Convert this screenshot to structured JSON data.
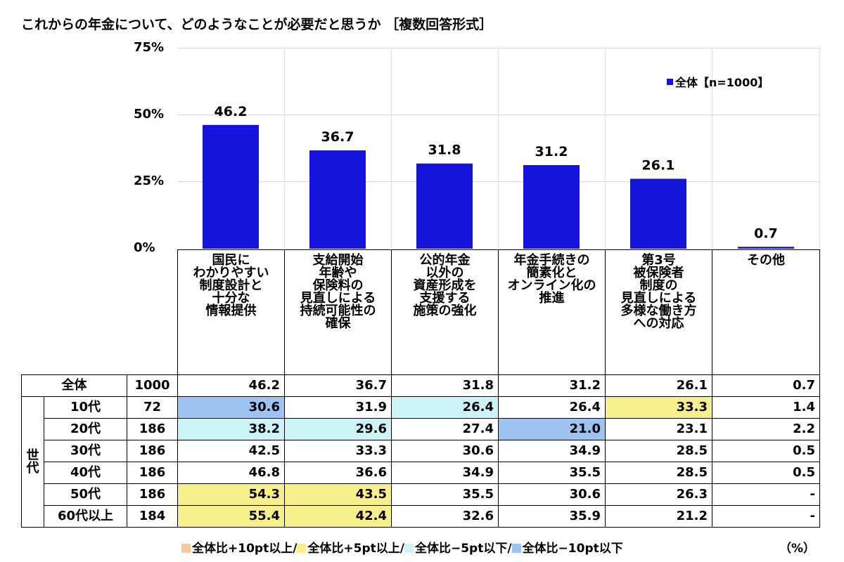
{
  "title": "これからの年金について、どのようなことが必要だと思うか ［複数回答形式］",
  "legend": {
    "label": "全体【n=1000】",
    "color": "#1414dc"
  },
  "chart_data": {
    "type": "bar",
    "title": "これからの年金について、どのようなことが必要だと思うか ［複数回答形式］",
    "categories": [
      "国民に\nわかりやすい\n制度設計と\n十分な\n情報提供",
      "支給開始\n年齢や\n保険料の\n見直しによる\n持続可能性の\n確保",
      "公的年金\n以外の\n資産形成を\n支援する\n施策の強化",
      "年金手続きの\n簡素化と\nオンライン化の\n推進",
      "第3号\n被保険者\n制度の\n見直しによる\n多様な働き方\nへの対応",
      "その他"
    ],
    "series": [
      {
        "name": "全体【n=1000】",
        "values": [
          46.2,
          36.7,
          31.8,
          31.2,
          26.1,
          0.7
        ]
      }
    ],
    "value_labels": [
      "46.2",
      "36.7",
      "31.8",
      "31.2",
      "26.1",
      "0.7"
    ],
    "yticks": [
      "75%",
      "50%",
      "25%",
      "0%"
    ],
    "ylim": [
      0,
      75
    ],
    "grid": true,
    "legend_position": "top-right"
  },
  "table": {
    "group_label": "世\n代",
    "rows": [
      {
        "label": "全体",
        "n": "1000",
        "values": [
          "46.2",
          "36.7",
          "31.8",
          "31.2",
          "26.1",
          "0.7"
        ],
        "hl": [
          "",
          "",
          "",
          "",
          "",
          ""
        ]
      },
      {
        "label": "10代",
        "n": "72",
        "values": [
          "30.6",
          "31.9",
          "26.4",
          "26.4",
          "33.3",
          "1.4"
        ],
        "hl": [
          "blue",
          "",
          "cyan",
          "",
          "yellow",
          ""
        ]
      },
      {
        "label": "20代",
        "n": "186",
        "values": [
          "38.2",
          "29.6",
          "27.4",
          "21.0",
          "23.1",
          "2.2"
        ],
        "hl": [
          "cyan",
          "cyan",
          "",
          "blue",
          "",
          ""
        ]
      },
      {
        "label": "30代",
        "n": "186",
        "values": [
          "42.5",
          "33.3",
          "30.6",
          "34.9",
          "28.5",
          "0.5"
        ],
        "hl": [
          "",
          "",
          "",
          "",
          "",
          ""
        ]
      },
      {
        "label": "40代",
        "n": "186",
        "values": [
          "46.8",
          "36.6",
          "34.9",
          "35.5",
          "28.5",
          "0.5"
        ],
        "hl": [
          "",
          "",
          "",
          "",
          "",
          ""
        ]
      },
      {
        "label": "50代",
        "n": "186",
        "values": [
          "54.3",
          "43.5",
          "35.5",
          "30.6",
          "26.3",
          "-"
        ],
        "hl": [
          "yellow",
          "yellow",
          "",
          "",
          "",
          ""
        ]
      },
      {
        "label": "60代以上",
        "n": "184",
        "values": [
          "55.4",
          "42.4",
          "32.6",
          "35.9",
          "21.2",
          "-"
        ],
        "hl": [
          "yellow",
          "yellow",
          "",
          "",
          "",
          ""
        ]
      }
    ]
  },
  "footnote": {
    "items": [
      {
        "label": "全体比+10pt以上",
        "color": "#f8c9a0",
        "sep": "/"
      },
      {
        "label": "全体比+5pt以上",
        "color": "#f8f08c",
        "sep": "/"
      },
      {
        "label": "全体比−5pt以下",
        "color": "#ccf4f6",
        "sep": "/"
      },
      {
        "label": "全体比−10pt以下",
        "color": "#9dc3f0",
        "sep": ""
      }
    ],
    "unit": "（%）"
  }
}
